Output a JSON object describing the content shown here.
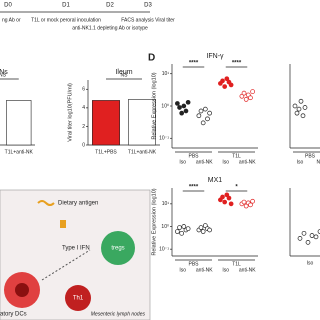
{
  "timeline": {
    "days": [
      "D0",
      "D1",
      "D2",
      "D3"
    ],
    "captions": [
      "ng Ab or",
      "T1L or mock peroral inoculation",
      "anti-NK1.1 depleting Ab or isotype",
      "FACS analysis Viral titer"
    ]
  },
  "panel_label": "D",
  "diagram": {
    "antigen": "Dietary antigen",
    "ifn": "Type I IFN",
    "treg": "tregs",
    "th1": "Th1",
    "location": "Mesenteric lymph nodes",
    "dcs": "atory DCs"
  },
  "chart_data": [
    {
      "type": "bar",
      "title": "INs",
      "categories": [
        null,
        "T1L+anti-NK"
      ],
      "values": [
        4.8,
        4.8
      ],
      "colors": [
        "#ffffff",
        "#ffffff"
      ],
      "ylim": [
        0,
        7
      ],
      "annotation": "NS"
    },
    {
      "type": "bar",
      "title": "Ileum",
      "y_label": "Viral titer log10(PFU/ml)",
      "categories": [
        "T1L+PBS",
        "T1L+anti-NK"
      ],
      "values": [
        4.8,
        4.9
      ],
      "colors": [
        "#e02020",
        "#ffffff"
      ],
      "ylim": [
        0,
        7
      ],
      "yticks": [
        0,
        2,
        4,
        6
      ],
      "annotation": "NS"
    },
    {
      "type": "dot",
      "title": "IFN-γ",
      "y_label": "Relative Expression (log10)",
      "log_scale": true,
      "ylim": [
        0.05,
        20
      ],
      "yticks": [
        {
          "value": 0.1,
          "label": "10⁻¹"
        },
        {
          "value": 1,
          "label": "10⁰"
        },
        {
          "value": 10,
          "label": "10¹"
        }
      ],
      "groups": [
        "PBS",
        "T1L"
      ],
      "categories": [
        "Iso",
        "anti-NK",
        "Iso",
        "anti-NK"
      ],
      "colors": [
        "#222222",
        "#222222",
        "#e02020",
        "#e02020"
      ],
      "filled": [
        true,
        false,
        true,
        false
      ],
      "points": [
        [
          1.2,
          0.9,
          0.6,
          1.0,
          0.7,
          1.3
        ],
        [
          0.5,
          0.7,
          0.3,
          0.8,
          0.4,
          0.6
        ],
        [
          5,
          6,
          4,
          7,
          5.5,
          4.5
        ],
        [
          2,
          2.5,
          1.6,
          2.2,
          1.8,
          2.8
        ]
      ],
      "significance": [
        "****",
        "****"
      ]
    },
    {
      "type": "dot",
      "title": "MX1",
      "y_label": "Relative Expression (log10)",
      "log_scale": true,
      "ylim": [
        0.05,
        50
      ],
      "yticks": [
        {
          "value": 0.1,
          "label": "10⁻¹"
        },
        {
          "value": 1,
          "label": "10⁰"
        },
        {
          "value": 10,
          "label": "10¹"
        }
      ],
      "groups": [
        "PBS",
        "T1L"
      ],
      "categories": [
        "Iso",
        "anti-NK",
        "Iso",
        "anti-NK"
      ],
      "colors": [
        "#222222",
        "#222222",
        "#e02020",
        "#e02020"
      ],
      "filled": [
        false,
        false,
        true,
        false
      ],
      "points": [
        [
          0.6,
          0.9,
          0.5,
          1.0,
          0.7,
          0.8
        ],
        [
          0.7,
          0.9,
          0.6,
          1.1,
          0.8,
          0.7
        ],
        [
          15,
          20,
          12,
          25,
          18,
          10
        ],
        [
          10,
          12,
          8,
          11,
          9,
          13
        ]
      ],
      "significance": [
        "****",
        "*"
      ]
    },
    {
      "type": "dot",
      "log_scale": true,
      "ylim": [
        0.05,
        20
      ],
      "groups": [
        "PBS"
      ],
      "categories": [
        "Iso",
        "NK"
      ],
      "colors": [
        "#222222",
        "#222222"
      ],
      "filled": [
        false,
        false
      ],
      "points": [
        [
          1.0,
          0.6,
          0.8,
          1.4,
          0.5,
          0.9
        ],
        []
      ]
    },
    {
      "type": "dot",
      "log_scale": true,
      "ylim": [
        0.05,
        50
      ],
      "categories": [
        "Iso"
      ],
      "colors": [
        "#222222"
      ],
      "filled": [
        false
      ],
      "points": [
        [
          0.3,
          0.5,
          0.2,
          0.4,
          0.35,
          0.6
        ]
      ]
    }
  ]
}
